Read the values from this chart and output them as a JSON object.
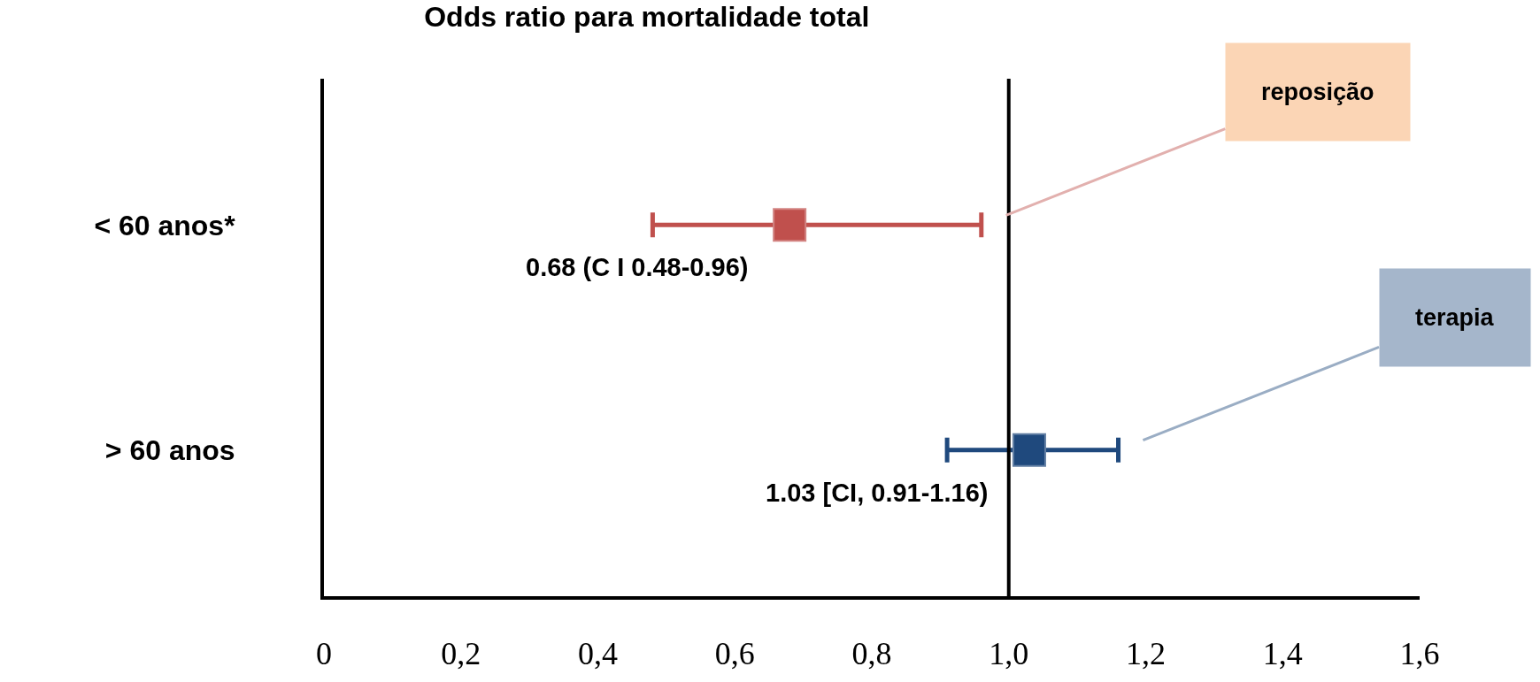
{
  "chart_data": {
    "type": "scatter",
    "orientation": "horizontal",
    "title": "Odds ratio para mortalidade total",
    "categories": [
      "< 60 anos*",
      "> 60 anos"
    ],
    "series": [
      {
        "name": "reposição",
        "color": "#c0504d",
        "values": [
          0.68,
          null
        ],
        "errors": [
          [
            0.48,
            0.96
          ],
          null
        ],
        "value_labels": [
          "0.68 (C I 0.48-0.96)",
          null
        ]
      },
      {
        "name": "terapia",
        "color": "#1f497d",
        "values": [
          null,
          1.03
        ],
        "errors": [
          null,
          [
            0.91,
            1.16
          ]
        ],
        "value_labels": [
          null,
          "1.03 [CI, 0.91-1.16)"
        ]
      }
    ],
    "xlim": [
      0,
      1.6
    ],
    "xticks": [
      0,
      {
        "value": 0.2,
        "label": "0,2"
      },
      {
        "value": 0.4,
        "label": "0,4"
      },
      {
        "value": 0.6,
        "label": "0,6"
      },
      {
        "value": 0.8,
        "label": "0,8"
      },
      {
        "value": 1.0,
        "label": "1,0"
      },
      {
        "value": 1.2,
        "label": "1,2"
      },
      {
        "value": 1.4,
        "label": "1,4"
      },
      {
        "value": 1.6,
        "label": "1,6"
      }
    ],
    "ref_lines": [
      {
        "axis": "x",
        "value": 1.0,
        "color": "#000000"
      }
    ],
    "marker": "square",
    "legend": false
  }
}
